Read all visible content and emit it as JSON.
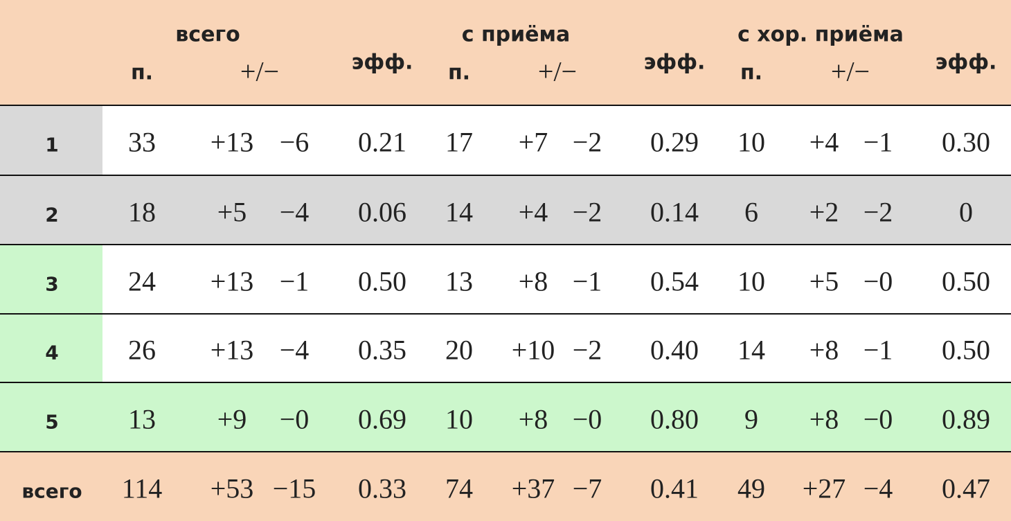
{
  "header": {
    "groups": [
      {
        "title": "всего",
        "n": "п.",
        "pm": "+/−",
        "eff": "эфф."
      },
      {
        "title": "с приёма",
        "n": "п.",
        "pm": "+/−",
        "eff": "эфф."
      },
      {
        "title": "с хор. приёма",
        "n": "п.",
        "pm": "+/−",
        "eff": "эфф."
      }
    ]
  },
  "table": {
    "rows": [
      {
        "label": "1",
        "groups": [
          {
            "n": "33",
            "plus": "+13",
            "minus": "−6",
            "eff": "0.21"
          },
          {
            "n": "17",
            "plus": "+7",
            "minus": "−2",
            "eff": "0.29"
          },
          {
            "n": "10",
            "plus": "+4",
            "minus": "−1",
            "eff": "0.30"
          }
        ]
      },
      {
        "label": "2",
        "groups": [
          {
            "n": "18",
            "plus": "+5",
            "minus": "−4",
            "eff": "0.06"
          },
          {
            "n": "14",
            "plus": "+4",
            "minus": "−2",
            "eff": "0.14"
          },
          {
            "n": "6",
            "plus": "+2",
            "minus": "−2",
            "eff": "0"
          }
        ]
      },
      {
        "label": "3",
        "groups": [
          {
            "n": "24",
            "plus": "+13",
            "minus": "−1",
            "eff": "0.50"
          },
          {
            "n": "13",
            "plus": "+8",
            "minus": "−1",
            "eff": "0.54"
          },
          {
            "n": "10",
            "plus": "+5",
            "minus": "−0",
            "eff": "0.50"
          }
        ]
      },
      {
        "label": "4",
        "groups": [
          {
            "n": "26",
            "plus": "+13",
            "minus": "−4",
            "eff": "0.35"
          },
          {
            "n": "20",
            "plus": "+10",
            "minus": "−2",
            "eff": "0.40"
          },
          {
            "n": "14",
            "plus": "+8",
            "minus": "−1",
            "eff": "0.50"
          }
        ]
      },
      {
        "label": "5",
        "groups": [
          {
            "n": "13",
            "plus": "+9",
            "minus": "−0",
            "eff": "0.69"
          },
          {
            "n": "10",
            "plus": "+8",
            "minus": "−0",
            "eff": "0.80"
          },
          {
            "n": "9",
            "plus": "+8",
            "minus": "−0",
            "eff": "0.89"
          }
        ]
      },
      {
        "label": "всего",
        "groups": [
          {
            "n": "114",
            "plus": "+53",
            "minus": "−15",
            "eff": "0.33"
          },
          {
            "n": "74",
            "plus": "+37",
            "minus": "−7",
            "eff": "0.41"
          },
          {
            "n": "49",
            "plus": "+27",
            "minus": "−4",
            "eff": "0.47"
          }
        ]
      }
    ]
  }
}
